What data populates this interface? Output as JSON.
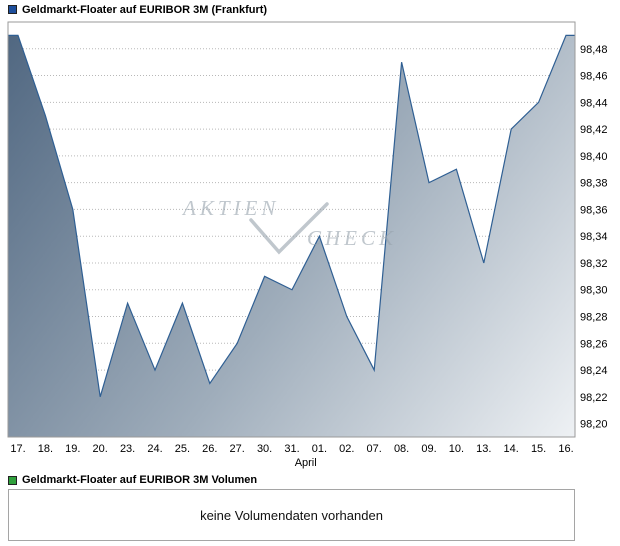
{
  "legend_top": {
    "label": "Geldmarkt-Floater auf EURIBOR 3M (Frankfurt)",
    "swatch_color": "#1e4f9c"
  },
  "legend_volume": {
    "label": "Geldmarkt-Floater auf EURIBOR 3M Volumen",
    "swatch_color": "#2fa03c"
  },
  "volume_panel": {
    "message": "keine Volumendaten vorhanden"
  },
  "watermark": {
    "word1": "AKTIEN",
    "word2": "CHECK"
  },
  "chart_data": {
    "type": "area",
    "title": "Geldmarkt-Floater auf EURIBOR 3M (Frankfurt)",
    "xlabel": "April",
    "ylabel": "",
    "x_tick_labels": [
      "17.",
      "18.",
      "19.",
      "20.",
      "23.",
      "24.",
      "25.",
      "26.",
      "27.",
      "30.",
      "31.",
      "01.",
      "02.",
      "07.",
      "08.",
      "09.",
      "10.",
      "13.",
      "14.",
      "15.",
      "16."
    ],
    "values": [
      98.49,
      98.43,
      98.36,
      98.22,
      98.29,
      98.24,
      98.29,
      98.23,
      98.26,
      98.31,
      98.3,
      98.34,
      98.28,
      98.24,
      98.47,
      98.38,
      98.39,
      98.32,
      98.42,
      98.44,
      98.49
    ],
    "y_ticks": [
      98.48,
      98.46,
      98.44,
      98.42,
      98.4,
      98.38,
      98.36,
      98.34,
      98.32,
      98.3,
      98.28,
      98.26,
      98.24,
      98.22,
      98.2
    ],
    "y_tick_labels": [
      "98,48",
      "98,46",
      "98,44",
      "98,42",
      "98,40",
      "98,38",
      "98,36",
      "98,34",
      "98,32",
      "98,30",
      "98,28",
      "98,26",
      "98,24",
      "98,22",
      "98,20"
    ],
    "ylim": [
      98.19,
      98.5
    ],
    "grid": "horizontal-dotted",
    "legend_position": "top-left",
    "line_color": "#2f5f93",
    "fill_gradient": [
      "#4f6680",
      "#9fadbb",
      "#eef1f4"
    ],
    "gridline_color": "#b8b8b8",
    "border_color": "#9a9a9a"
  }
}
